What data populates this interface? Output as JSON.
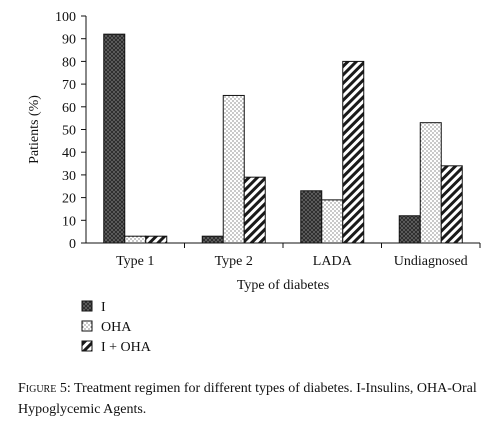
{
  "chart_data": {
    "type": "bar",
    "title": "",
    "xlabel": "Type of diabetes",
    "ylabel": "Patients (%)",
    "ylim": [
      0,
      100
    ],
    "yticks": [
      "0",
      "10",
      "20",
      "30",
      "40",
      "50",
      "60",
      "70",
      "80",
      "90",
      "100"
    ],
    "categories": [
      "Type 1",
      "Type 2",
      "LADA",
      "Undiagnosed"
    ],
    "series": [
      {
        "name": "I",
        "values": [
          92,
          3,
          23,
          12
        ],
        "pattern": "crosshatch-dark"
      },
      {
        "name": "OHA",
        "values": [
          3,
          65,
          19,
          53
        ],
        "pattern": "dots-light"
      },
      {
        "name": "I + OHA",
        "values": [
          3,
          29,
          80,
          34
        ],
        "pattern": "diagonal-stripes"
      }
    ],
    "grid": false,
    "legend_position": "bottom-left"
  },
  "caption": {
    "label": "Figure 5:",
    "text": "Treatment regimen for different types of diabetes. I-Insulins, OHA-Oral Hypoglycemic Agents."
  }
}
